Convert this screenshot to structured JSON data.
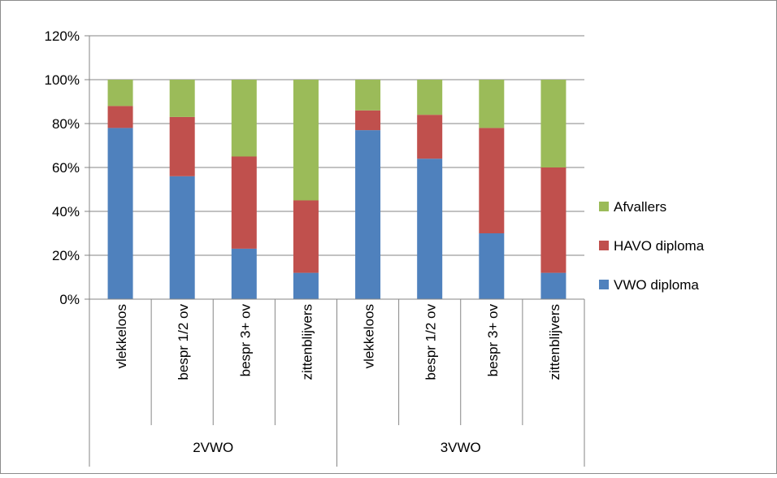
{
  "chart_data": {
    "type": "bar",
    "stacked": true,
    "groups": [
      {
        "label": "2VWO",
        "categories": [
          "vlekkeloos",
          "bespr 1/2 ov",
          "bespr 3+ ov",
          "zittenblijvers"
        ]
      },
      {
        "label": "3VWO",
        "categories": [
          "vlekkeloos",
          "bespr 1/2 ov",
          "bespr 3+ ov",
          "zittenblijvers"
        ]
      }
    ],
    "series": [
      {
        "name": "VWO diploma",
        "color": "#4f81bd",
        "values": [
          78,
          56,
          23,
          12,
          77,
          64,
          30,
          12
        ]
      },
      {
        "name": "HAVO diploma",
        "color": "#c0504d",
        "values": [
          10,
          27,
          42,
          33,
          9,
          20,
          48,
          48
        ]
      },
      {
        "name": "Afvallers",
        "color": "#9bbb59",
        "values": [
          12,
          17,
          35,
          55,
          14,
          16,
          22,
          40
        ]
      }
    ],
    "legend_order": [
      "Afvallers",
      "HAVO diploma",
      "VWO diploma"
    ],
    "legend_position": "right",
    "ylim": [
      0,
      120
    ],
    "y_ticks": [
      "0%",
      "20%",
      "40%",
      "60%",
      "80%",
      "100%",
      "120%"
    ],
    "grid": true,
    "title": "",
    "xlabel": "",
    "ylabel": ""
  }
}
